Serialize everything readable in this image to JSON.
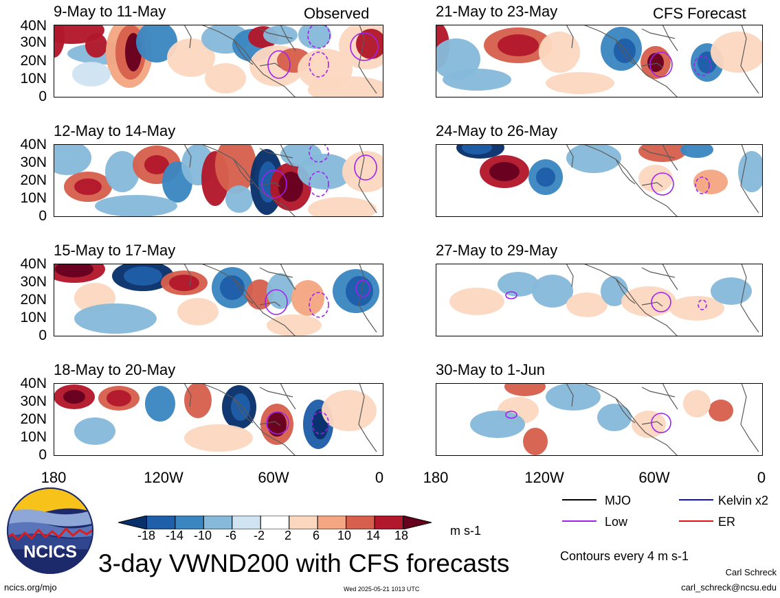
{
  "observed_label": "Observed",
  "forecast_label": "CFS Forecast",
  "lat_labels": [
    "40N",
    "30N",
    "20N",
    "10N",
    "0"
  ],
  "lon_labels": [
    "180",
    "120W",
    "60W",
    "0"
  ],
  "panels_left": [
    {
      "title": "9-May to 11-May"
    },
    {
      "title": "12-May to 14-May"
    },
    {
      "title": "15-May to 17-May"
    },
    {
      "title": "18-May to 20-May"
    }
  ],
  "panels_right": [
    {
      "title": "21-May to 23-May"
    },
    {
      "title": "24-May to 26-May"
    },
    {
      "title": "27-May to 29-May"
    },
    {
      "title": "30-May to 1-Jun"
    }
  ],
  "colorbar": {
    "labels": [
      "-18",
      "-14",
      "-10",
      "-6",
      "-2",
      "2",
      "6",
      "10",
      "14",
      "18"
    ],
    "units": "m s-1",
    "colors": [
      "#08306b",
      "#1f5ea8",
      "#3b86c1",
      "#86b9da",
      "#cfe3f1",
      "#ffffff",
      "#fcd7c0",
      "#f4a582",
      "#d6604d",
      "#b2182b",
      "#67001f"
    ]
  },
  "legend": {
    "items": [
      {
        "label": "MJO",
        "color": "#000000"
      },
      {
        "label": "Kelvin x2",
        "color": "#1010cc"
      },
      {
        "label": "Low",
        "color": "#a020f0"
      },
      {
        "label": "ER",
        "color": "#dd1111"
      }
    ],
    "contours_note": "Contours every 4 m s-1"
  },
  "logo_text": "NCICS",
  "main_title": "3-day VWND200 with CFS forecasts",
  "author": "Carl Schreck",
  "email": "carl_schreck@ncsu.edu",
  "url": "ncics.org/mjo",
  "timestamp": "Wed 2025-05-21 1013 UTC"
}
